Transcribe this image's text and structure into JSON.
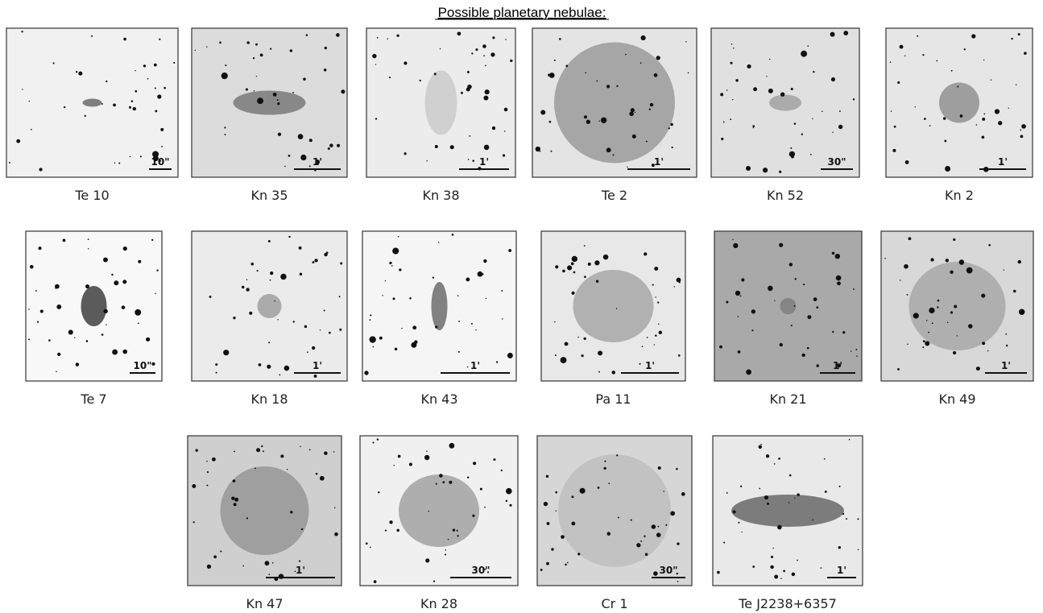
{
  "title": "Possible planetary nebulae:",
  "panels": [
    {
      "name": "Te 10",
      "scale": "10\""
    },
    {
      "name": "Kn 35",
      "scale": "1'"
    },
    {
      "name": "Kn 38",
      "scale": "1'"
    },
    {
      "name": "Te 2",
      "scale": "1'"
    },
    {
      "name": "Kn 52",
      "scale": "30\""
    },
    {
      "name": "Kn 2",
      "scale": "1'"
    },
    {
      "name": "Te 7",
      "scale": "10\""
    },
    {
      "name": "Kn 18",
      "scale": "1'"
    },
    {
      "name": "Kn 43",
      "scale": "1'"
    },
    {
      "name": "Pa 11",
      "scale": "1'"
    },
    {
      "name": "Kn 21",
      "scale": "1'"
    },
    {
      "name": "Kn 49",
      "scale": "1'"
    },
    {
      "name": "Kn 47",
      "scale": "1'"
    },
    {
      "name": "Kn 28",
      "scale": "30\""
    },
    {
      "name": "Cr 1",
      "scale": "30\""
    },
    {
      "name": "Te J2238+6357",
      "scale": "1'"
    }
  ]
}
